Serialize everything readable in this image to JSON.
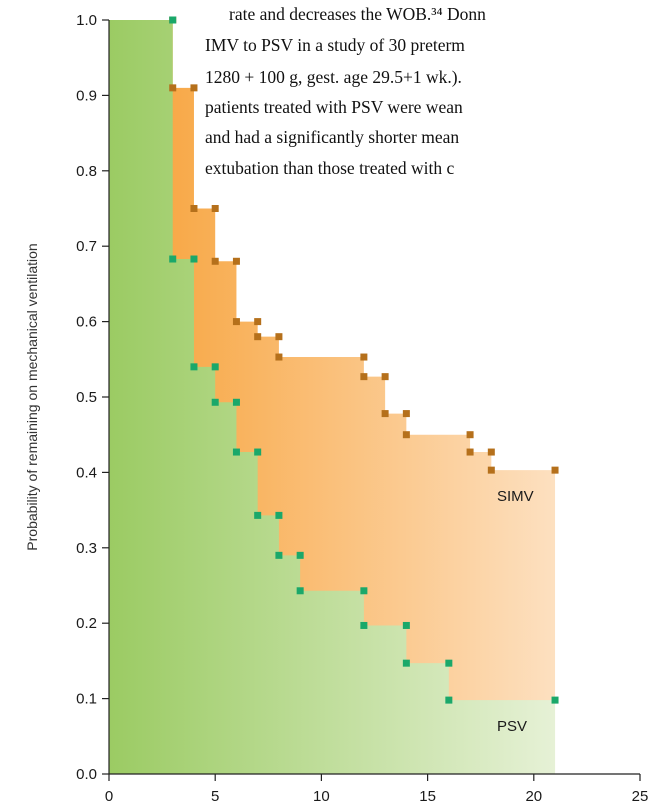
{
  "text_fragment": {
    "lines": [
      "rate and decreases the WOB.³⁴ Donn",
      "IMV to PSV in a study of 30 preterm",
      "1280 + 100 g, gest. age 29.5+1 wk.).",
      "patients treated with PSV were wean",
      "and had a significantly shorter mean",
      "extubation than those treated with c"
    ]
  },
  "chart_data": {
    "type": "area",
    "title": "",
    "xlabel": "",
    "ylabel": "Probability of remaining on mechanical ventilation",
    "xlim": [
      0,
      25
    ],
    "ylim": [
      0,
      1.0
    ],
    "xticks": [
      "0",
      "5",
      "10",
      "15",
      "20",
      "25"
    ],
    "yticks": [
      "0.0",
      "0.1",
      "0.2",
      "0.3",
      "0.4",
      "0.5",
      "0.6",
      "0.7",
      "0.8",
      "0.9",
      "1.0"
    ],
    "series": [
      {
        "name": "SIMV",
        "color": "#f7a035",
        "marker_color": "#b5701b",
        "x": [
          0,
          3,
          4,
          5,
          6,
          7,
          8,
          12,
          13,
          14,
          17,
          18,
          21
        ],
        "y": [
          1.0,
          0.91,
          0.75,
          0.68,
          0.6,
          0.58,
          0.553,
          0.527,
          0.478,
          0.45,
          0.427,
          0.403,
          0.403
        ]
      },
      {
        "name": "PSV",
        "color": "#9bcb63",
        "marker_color": "#1aa86a",
        "x": [
          0,
          3,
          4,
          5,
          6,
          7,
          8,
          9,
          12,
          14,
          16,
          21
        ],
        "y": [
          1.0,
          0.683,
          0.54,
          0.493,
          0.427,
          0.343,
          0.29,
          0.243,
          0.197,
          0.147,
          0.098,
          0.098
        ]
      }
    ]
  }
}
